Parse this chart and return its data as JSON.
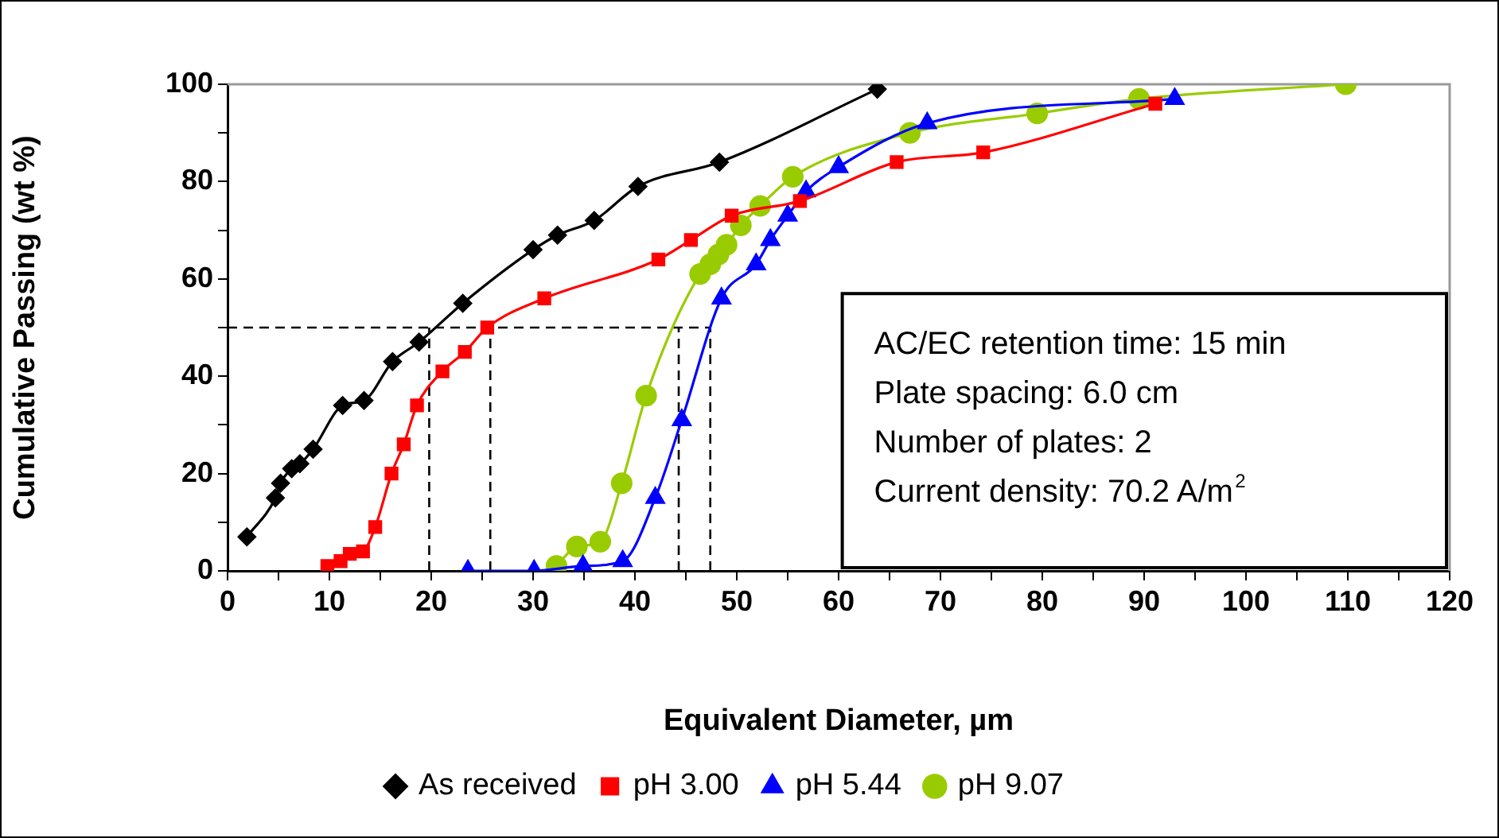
{
  "chart_data": {
    "type": "line",
    "xlabel": "Equivalent Diameter, µm",
    "ylabel": "Cumulative Passing (wt %)",
    "xlim": [
      0,
      120
    ],
    "xticks": [
      0,
      {
        "value": 5,
        "label": null
      },
      10,
      {
        "value": 15,
        "label": null
      },
      20,
      {
        "value": 25,
        "label": null
      },
      30,
      {
        "value": 35,
        "label": null
      },
      40,
      {
        "value": 45,
        "label": null
      },
      50,
      {
        "value": 55,
        "label": null
      },
      60,
      {
        "value": 65,
        "label": null
      },
      70,
      {
        "value": 75,
        "label": null
      },
      80,
      {
        "value": 85,
        "label": null
      },
      90,
      {
        "value": 95,
        "label": null
      },
      100,
      {
        "value": 105,
        "label": null
      },
      110,
      {
        "value": 115,
        "label": null
      },
      120
    ],
    "ylim": [
      0,
      100
    ],
    "yticks": [
      0,
      {
        "value": 10,
        "label": null
      },
      20,
      {
        "value": 30,
        "label": null
      },
      40,
      {
        "value": 50,
        "label": null
      },
      60,
      {
        "value": 70,
        "label": null
      },
      80,
      {
        "value": 90,
        "label": null
      },
      100
    ],
    "legend": "bottom",
    "line_style": "solid",
    "series": [
      {
        "name": "As received",
        "color": "#000000",
        "marker": "diamond",
        "x": [
          1.9,
          4.7,
          5.2,
          6.3,
          7.1,
          8.4,
          11.3,
          13.4,
          16.2,
          18.8,
          23.1,
          30,
          32.4,
          36,
          40.3,
          48.3,
          63.8
        ],
        "values": [
          7,
          15,
          18,
          21,
          22,
          25,
          34,
          35,
          43,
          47,
          55,
          66,
          69,
          72,
          79,
          84,
          99
        ]
      },
      {
        "name": "pH 3.00",
        "color": "#ff0000",
        "marker": "square",
        "x": [
          9.8,
          11.1,
          12,
          13.3,
          14.5,
          16.1,
          17.3,
          18.6,
          21.1,
          23.3,
          25.5,
          31.1,
          42.3,
          45.5,
          49.5,
          56.2,
          65.7,
          74.2,
          91.1
        ],
        "values": [
          1,
          2,
          3.5,
          4,
          9,
          20,
          26,
          34,
          41,
          45,
          50,
          56,
          64,
          68,
          73,
          76,
          84,
          86,
          96
        ]
      },
      {
        "name": "pH 5.44",
        "color": "#0000ff",
        "marker": "triangle",
        "x": [
          23.6,
          30.1,
          34.9,
          38.8,
          42,
          44.6,
          48.5,
          51.9,
          53.3,
          55,
          56.8,
          60,
          68.7,
          93
        ],
        "values": [
          0,
          0,
          1,
          2,
          15,
          31,
          56,
          63,
          68,
          73,
          78,
          83,
          92,
          97
        ]
      },
      {
        "name": "pH 9.07",
        "color": "#99cc00",
        "marker": "circle",
        "x": [
          32.3,
          34.3,
          36.6,
          38.7,
          41.1,
          46.4,
          47.4,
          48.2,
          49,
          50.4,
          52.3,
          55.5,
          67,
          79.5,
          89.5,
          109.8
        ],
        "values": [
          1,
          5,
          6,
          18,
          36,
          61,
          63,
          65,
          67,
          71,
          75,
          81,
          90,
          94,
          97,
          100
        ]
      }
    ],
    "ref_lines": [
      {
        "axis": "y",
        "value": 50,
        "line_style": "dashed",
        "color": "#000000"
      },
      {
        "axis": "x",
        "value": 19.8,
        "line_style": "dashed",
        "color": "#000000"
      },
      {
        "axis": "x",
        "value": 25.8,
        "line_style": "dashed",
        "color": "#000000"
      },
      {
        "axis": "x",
        "value": 44.3,
        "line_style": "dashed",
        "color": "#000000"
      },
      {
        "axis": "x",
        "value": 47.4,
        "line_style": "dashed",
        "color": "#000000"
      }
    ],
    "annotations": [
      "AC/EC retention time: 15 min",
      "Plate spacing: 6.0 cm",
      "Number of plates: 2",
      "Current density: 70.2 A/m$^{2}$"
    ]
  }
}
